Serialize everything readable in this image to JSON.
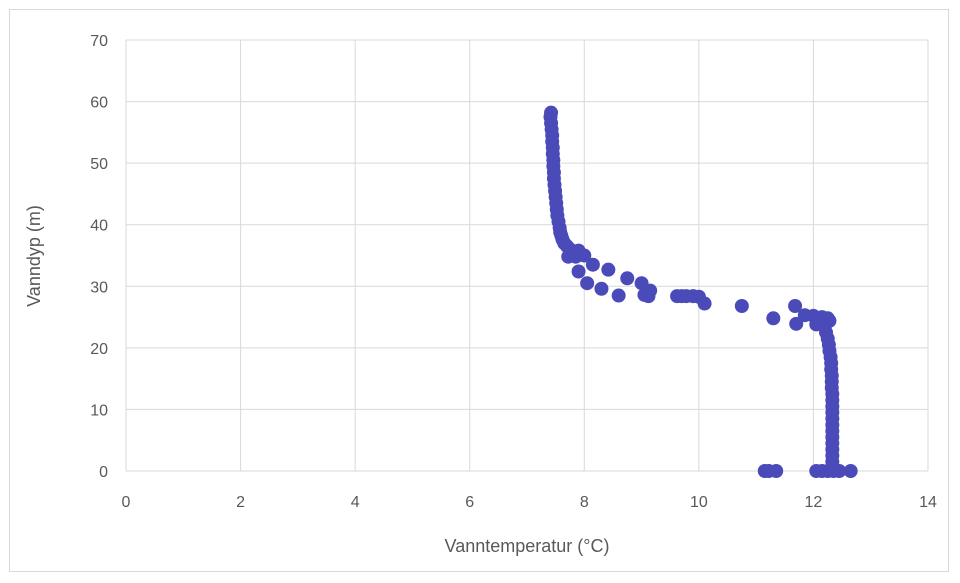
{
  "chart_data": {
    "type": "scatter",
    "title": "",
    "xlabel": "Vanntemperatur (°C)",
    "ylabel": "Vanndyp (m)",
    "xlim": [
      0,
      14
    ],
    "ylim": [
      0,
      70
    ],
    "xticks": [
      "0",
      "2",
      "4",
      "6",
      "8",
      "10",
      "12",
      "14"
    ],
    "yticks": [
      "0",
      "10",
      "20",
      "30",
      "40",
      "50",
      "60",
      "70"
    ],
    "grid": true,
    "legend": "none",
    "marker_color": "#4a4ab8",
    "series": [
      {
        "points": [
          [
            7.42,
            58.2
          ],
          [
            7.41,
            57.5
          ],
          [
            7.42,
            56.5
          ],
          [
            7.43,
            55.5
          ],
          [
            7.44,
            54.5
          ],
          [
            7.44,
            53.5
          ],
          [
            7.45,
            52.5
          ],
          [
            7.45,
            51.5
          ],
          [
            7.46,
            50.5
          ],
          [
            7.46,
            49.5
          ],
          [
            7.47,
            48.5
          ],
          [
            7.47,
            47.5
          ],
          [
            7.48,
            46.5
          ],
          [
            7.49,
            45.5
          ],
          [
            7.5,
            44.5
          ],
          [
            7.51,
            43.5
          ],
          [
            7.52,
            42.5
          ],
          [
            7.53,
            41.5
          ],
          [
            7.55,
            40.5
          ],
          [
            7.57,
            39.5
          ],
          [
            7.58,
            38.8
          ],
          [
            7.6,
            38.2
          ],
          [
            7.62,
            37.6
          ],
          [
            7.65,
            37.0
          ],
          [
            7.7,
            36.5
          ],
          [
            7.75,
            36.0
          ],
          [
            7.8,
            35.5
          ],
          [
            7.9,
            35.8
          ],
          [
            8.0,
            35.0
          ],
          [
            7.85,
            34.8
          ],
          [
            7.72,
            34.8
          ],
          [
            8.15,
            33.5
          ],
          [
            8.42,
            32.7
          ],
          [
            7.9,
            32.4
          ],
          [
            8.75,
            31.3
          ],
          [
            9.0,
            30.5
          ],
          [
            8.05,
            30.5
          ],
          [
            8.3,
            29.6
          ],
          [
            9.15,
            29.3
          ],
          [
            9.05,
            28.6
          ],
          [
            9.12,
            28.4
          ],
          [
            8.6,
            28.5
          ],
          [
            9.62,
            28.4
          ],
          [
            9.7,
            28.4
          ],
          [
            9.78,
            28.4
          ],
          [
            9.9,
            28.4
          ],
          [
            10.0,
            28.3
          ],
          [
            10.1,
            27.2
          ],
          [
            10.75,
            26.8
          ],
          [
            11.68,
            26.8
          ],
          [
            11.85,
            25.3
          ],
          [
            12.0,
            25.2
          ],
          [
            12.15,
            25.0
          ],
          [
            12.25,
            24.8
          ],
          [
            12.28,
            24.4
          ],
          [
            11.3,
            24.8
          ],
          [
            11.7,
            23.9
          ],
          [
            12.05,
            23.8
          ],
          [
            12.2,
            23.5
          ],
          [
            12.22,
            22.5
          ],
          [
            12.25,
            21.5
          ],
          [
            12.27,
            20.5
          ],
          [
            12.28,
            19.5
          ],
          [
            12.3,
            18.5
          ],
          [
            12.31,
            17.5
          ],
          [
            12.31,
            16.5
          ],
          [
            12.32,
            15.5
          ],
          [
            12.32,
            14.5
          ],
          [
            12.32,
            13.5
          ],
          [
            12.33,
            12.5
          ],
          [
            12.33,
            11.5
          ],
          [
            12.33,
            10.5
          ],
          [
            12.33,
            9.5
          ],
          [
            12.33,
            8.5
          ],
          [
            12.33,
            7.5
          ],
          [
            12.33,
            6.5
          ],
          [
            12.33,
            5.5
          ],
          [
            12.33,
            4.5
          ],
          [
            12.33,
            3.5
          ],
          [
            12.33,
            2.5
          ],
          [
            12.33,
            1.5
          ],
          [
            12.33,
            0.5
          ],
          [
            11.15,
            0.0
          ],
          [
            11.22,
            0.0
          ],
          [
            11.35,
            0.0
          ],
          [
            12.05,
            0.0
          ],
          [
            12.15,
            0.0
          ],
          [
            12.25,
            0.0
          ],
          [
            12.35,
            0.0
          ],
          [
            12.45,
            0.0
          ],
          [
            12.65,
            0.0
          ]
        ]
      }
    ]
  }
}
